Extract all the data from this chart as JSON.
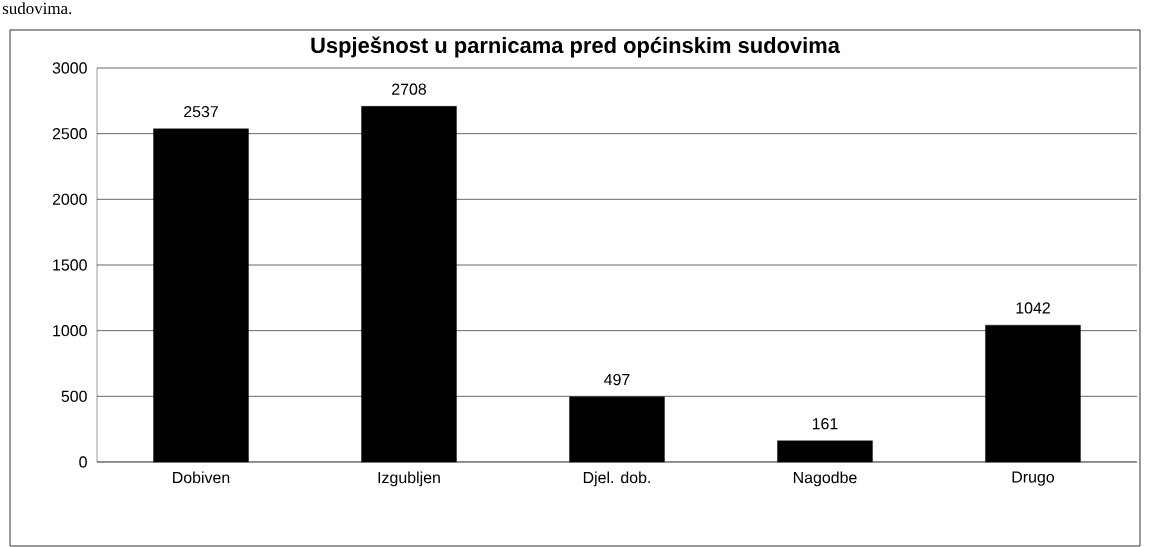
{
  "chart_data": {
    "type": "bar",
    "title": "Uspješnost u parnicama pred općinskim sudovima",
    "categories": [
      "Dobiven",
      "Izgubljen",
      "Djel. dob.",
      "Nagodbe",
      "Drugo"
    ],
    "values": [
      2537,
      2708,
      497,
      161,
      1042
    ],
    "color": "#000000",
    "ylim": [
      0,
      3000
    ],
    "yticks": [
      0,
      500,
      1000,
      1500,
      2000,
      2500,
      3000
    ],
    "grid": "y",
    "data_labels": true,
    "annotations": [
      "sudovima."
    ]
  }
}
